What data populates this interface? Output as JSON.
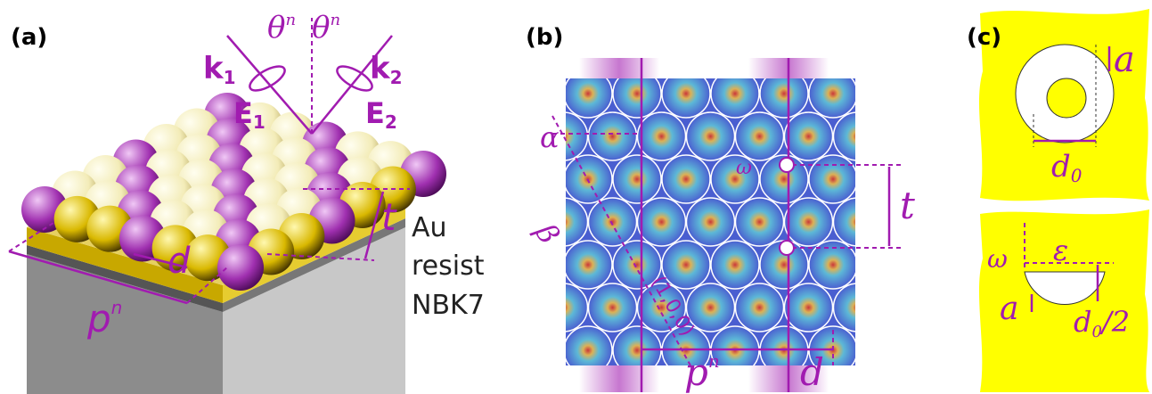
{
  "panel_a": {
    "label": "(a)",
    "k1": [
      "k",
      "1"
    ],
    "k2": [
      "k",
      "2"
    ],
    "theta_left": [
      "θ",
      "n"
    ],
    "theta_right": [
      "θ",
      "n"
    ],
    "e1": [
      "E",
      "1"
    ],
    "e2": [
      "E",
      "2"
    ],
    "t": "t",
    "d": "d",
    "p": [
      "p",
      "n"
    ],
    "layers": [
      "Au",
      "resist",
      "NBK7"
    ]
  },
  "panel_b": {
    "label": "(b)",
    "alpha": "α",
    "beta": "β",
    "omega": "ω",
    "t": "t",
    "direction": "(1,0,0)",
    "p": [
      "p",
      "n"
    ],
    "d": "d"
  },
  "panel_c": {
    "label": "(c)",
    "a_top": "a",
    "d0": [
      "d",
      "0"
    ],
    "omega": "ω",
    "epsilon": "ε",
    "a_bottom": "a",
    "d0_half": [
      "d",
      "0",
      "/2"
    ]
  }
}
